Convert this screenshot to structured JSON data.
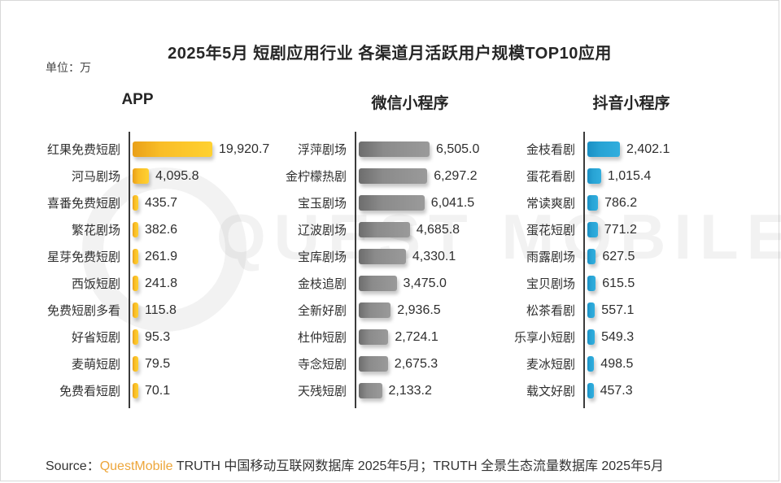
{
  "title": "2025年5月 短剧应用行业 各渠道月活跃用户规模TOP10应用",
  "unit_label": "单位：万",
  "watermark": "QUEST MOBILE",
  "source": {
    "prefix": "Source：",
    "brand": "QuestMobile",
    "tail": " TRUTH 中国移动互联网数据库 2025年5月；TRUTH 全景生态流量数据库 2025年5月"
  },
  "chart_data": {
    "type": "bar",
    "orientation": "horizontal",
    "unit": "万",
    "title": "2025年5月 短剧应用行业 各渠道月活跃用户规模TOP10应用",
    "legend": "none",
    "grid": false,
    "value_labels_shown": true,
    "scale_note": "each column scaled independently to its own max",
    "columns": [
      {
        "header": "APP",
        "color": "#FBBE27",
        "items": [
          {
            "label": "红果免费短剧",
            "value": 19920.7,
            "display": "19,920.7"
          },
          {
            "label": "河马剧场",
            "value": 4095.8,
            "display": "4,095.8"
          },
          {
            "label": "喜番免费短剧",
            "value": 435.7,
            "display": "435.7"
          },
          {
            "label": "繁花剧场",
            "value": 382.6,
            "display": "382.6"
          },
          {
            "label": "星芽免费短剧",
            "value": 261.9,
            "display": "261.9"
          },
          {
            "label": "西饭短剧",
            "value": 241.8,
            "display": "241.8"
          },
          {
            "label": "免费短剧多看",
            "value": 115.8,
            "display": "115.8"
          },
          {
            "label": "好省短剧",
            "value": 95.3,
            "display": "95.3"
          },
          {
            "label": "麦萌短剧",
            "value": 79.5,
            "display": "79.5"
          },
          {
            "label": "免费看短剧",
            "value": 70.1,
            "display": "70.1"
          }
        ]
      },
      {
        "header": "微信小程序",
        "color": "#8F8F8F",
        "items": [
          {
            "label": "浮萍剧场",
            "value": 6505.0,
            "display": "6,505.0"
          },
          {
            "label": "金柠檬热剧",
            "value": 6297.2,
            "display": "6,297.2"
          },
          {
            "label": "宝玉剧场",
            "value": 6041.5,
            "display": "6,041.5"
          },
          {
            "label": "辽波剧场",
            "value": 4685.8,
            "display": "4,685.8"
          },
          {
            "label": "宝库剧场",
            "value": 4330.1,
            "display": "4,330.1"
          },
          {
            "label": "金枝追剧",
            "value": 3475.0,
            "display": "3,475.0"
          },
          {
            "label": "全新好剧",
            "value": 2936.5,
            "display": "2,936.5"
          },
          {
            "label": "杜仲短剧",
            "value": 2724.1,
            "display": "2,724.1"
          },
          {
            "label": "寺念短剧",
            "value": 2675.3,
            "display": "2,675.3"
          },
          {
            "label": "天残短剧",
            "value": 2133.2,
            "display": "2,133.2"
          }
        ]
      },
      {
        "header": "抖音小程序",
        "color": "#29A4D5",
        "items": [
          {
            "label": "金枝看剧",
            "value": 2402.1,
            "display": "2,402.1"
          },
          {
            "label": "蛋花看剧",
            "value": 1015.4,
            "display": "1,015.4"
          },
          {
            "label": "常读爽剧",
            "value": 786.2,
            "display": "786.2"
          },
          {
            "label": "蛋花短剧",
            "value": 771.2,
            "display": "771.2"
          },
          {
            "label": "雨露剧场",
            "value": 627.5,
            "display": "627.5"
          },
          {
            "label": "宝贝剧场",
            "value": 615.5,
            "display": "615.5"
          },
          {
            "label": "松茶看剧",
            "value": 557.1,
            "display": "557.1"
          },
          {
            "label": "乐享小短剧",
            "value": 549.3,
            "display": "549.3"
          },
          {
            "label": "麦冰短剧",
            "value": 498.5,
            "display": "498.5"
          },
          {
            "label": "载文好剧",
            "value": 457.3,
            "display": "457.3"
          }
        ]
      }
    ]
  }
}
